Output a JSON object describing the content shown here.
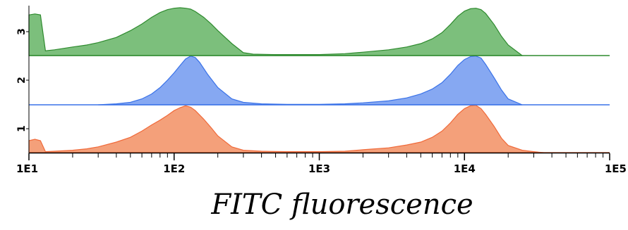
{
  "chart_data": {
    "type": "area",
    "title": "",
    "xlabel": "FITC fluorescence",
    "ylabel": "",
    "xscale": "log",
    "xlim": [
      10,
      100000
    ],
    "x_ticks": [
      {
        "value": 10,
        "label": "1E1"
      },
      {
        "value": 100,
        "label": "1E2"
      },
      {
        "value": 1000,
        "label": "1E3"
      },
      {
        "value": 10000,
        "label": "1E4"
      },
      {
        "value": 100000,
        "label": "1E5"
      }
    ],
    "legend": "none",
    "grid": false,
    "series": [
      {
        "lane": "1",
        "color": "#f4a07a",
        "stroke": "#f06a3a",
        "x": [
          10,
          11,
          12,
          13,
          15,
          20,
          25,
          30,
          40,
          50,
          60,
          70,
          80,
          90,
          100,
          110,
          120,
          130,
          140,
          160,
          180,
          200,
          250,
          300,
          400,
          600,
          1000,
          1500,
          2000,
          3000,
          4000,
          5000,
          6000,
          7000,
          8000,
          9000,
          10000,
          11000,
          12000,
          13000,
          14000,
          16000,
          18000,
          20000,
          25000,
          30000,
          35000
        ],
        "y": [
          0.25,
          0.28,
          0.25,
          0.02,
          0.03,
          0.05,
          0.08,
          0.12,
          0.22,
          0.32,
          0.45,
          0.58,
          0.68,
          0.78,
          0.88,
          0.94,
          0.98,
          0.95,
          0.88,
          0.7,
          0.52,
          0.35,
          0.12,
          0.05,
          0.03,
          0.02,
          0.02,
          0.03,
          0.06,
          0.1,
          0.16,
          0.22,
          0.32,
          0.45,
          0.62,
          0.8,
          0.92,
          0.98,
          0.99,
          0.92,
          0.8,
          0.55,
          0.3,
          0.15,
          0.05,
          0.02,
          0.0
        ]
      },
      {
        "lane": "2",
        "color": "#86a8f2",
        "stroke": "#3a72e8",
        "x": [
          30,
          40,
          50,
          60,
          70,
          80,
          90,
          100,
          110,
          120,
          130,
          140,
          150,
          170,
          200,
          250,
          300,
          400,
          600,
          1000,
          1500,
          2000,
          3000,
          4000,
          5000,
          6000,
          7000,
          8000,
          9000,
          10000,
          11000,
          12000,
          13000,
          14000,
          16000,
          18000,
          20000,
          25000
        ],
        "y": [
          0.0,
          0.02,
          0.05,
          0.12,
          0.22,
          0.35,
          0.5,
          0.65,
          0.8,
          0.93,
          0.99,
          0.96,
          0.86,
          0.62,
          0.35,
          0.12,
          0.05,
          0.02,
          0.01,
          0.01,
          0.02,
          0.04,
          0.08,
          0.14,
          0.22,
          0.32,
          0.45,
          0.62,
          0.8,
          0.92,
          0.98,
          0.99,
          0.95,
          0.82,
          0.55,
          0.3,
          0.12,
          0.0
        ]
      },
      {
        "lane": "3",
        "color": "#7cbf7c",
        "stroke": "#2e8a2e",
        "x": [
          10,
          11,
          12,
          13,
          15,
          20,
          25,
          30,
          40,
          50,
          60,
          70,
          80,
          90,
          100,
          110,
          120,
          130,
          140,
          160,
          180,
          200,
          250,
          300,
          350,
          500,
          1000,
          1500,
          2000,
          3000,
          4000,
          5000,
          6000,
          7000,
          8000,
          9000,
          10000,
          11000,
          12000,
          13000,
          14000,
          16000,
          18000,
          20000,
          25000
        ],
        "y": [
          0.85,
          0.87,
          0.85,
          0.1,
          0.12,
          0.18,
          0.22,
          0.27,
          0.38,
          0.52,
          0.66,
          0.8,
          0.9,
          0.96,
          0.99,
          1.0,
          0.99,
          0.97,
          0.92,
          0.8,
          0.66,
          0.52,
          0.25,
          0.06,
          0.03,
          0.02,
          0.02,
          0.04,
          0.07,
          0.12,
          0.18,
          0.25,
          0.35,
          0.48,
          0.65,
          0.82,
          0.93,
          0.98,
          0.99,
          0.96,
          0.88,
          0.65,
          0.4,
          0.22,
          0.0
        ]
      }
    ]
  }
}
